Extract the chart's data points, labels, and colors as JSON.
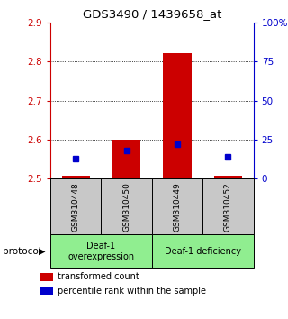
{
  "title": "GDS3490 / 1439658_at",
  "samples": [
    "GSM310448",
    "GSM310450",
    "GSM310449",
    "GSM310452"
  ],
  "transformed_count": [
    2.508,
    2.6,
    2.82,
    2.508
  ],
  "percentile_rank": [
    13,
    18,
    22,
    14
  ],
  "ylim_left": [
    2.5,
    2.9
  ],
  "ylim_right": [
    0,
    100
  ],
  "yticks_left": [
    2.5,
    2.6,
    2.7,
    2.8,
    2.9
  ],
  "yticks_right": [
    0,
    25,
    50,
    75,
    100
  ],
  "ytick_labels_right": [
    "0",
    "25",
    "50",
    "75",
    "100%"
  ],
  "groups": [
    {
      "label": "Deaf-1\noverexpression",
      "color": "#90EE90"
    },
    {
      "label": "Deaf-1 deficiency",
      "color": "#90EE90"
    }
  ],
  "bar_color": "#CC0000",
  "marker_color": "#0000CC",
  "bar_width": 0.55,
  "sample_bg_color": "#C8C8C8",
  "left_tick_color": "#CC0000",
  "right_tick_color": "#0000CC",
  "legend_items": [
    {
      "color": "#CC0000",
      "label": "transformed count"
    },
    {
      "color": "#0000CC",
      "label": "percentile rank within the sample"
    }
  ]
}
